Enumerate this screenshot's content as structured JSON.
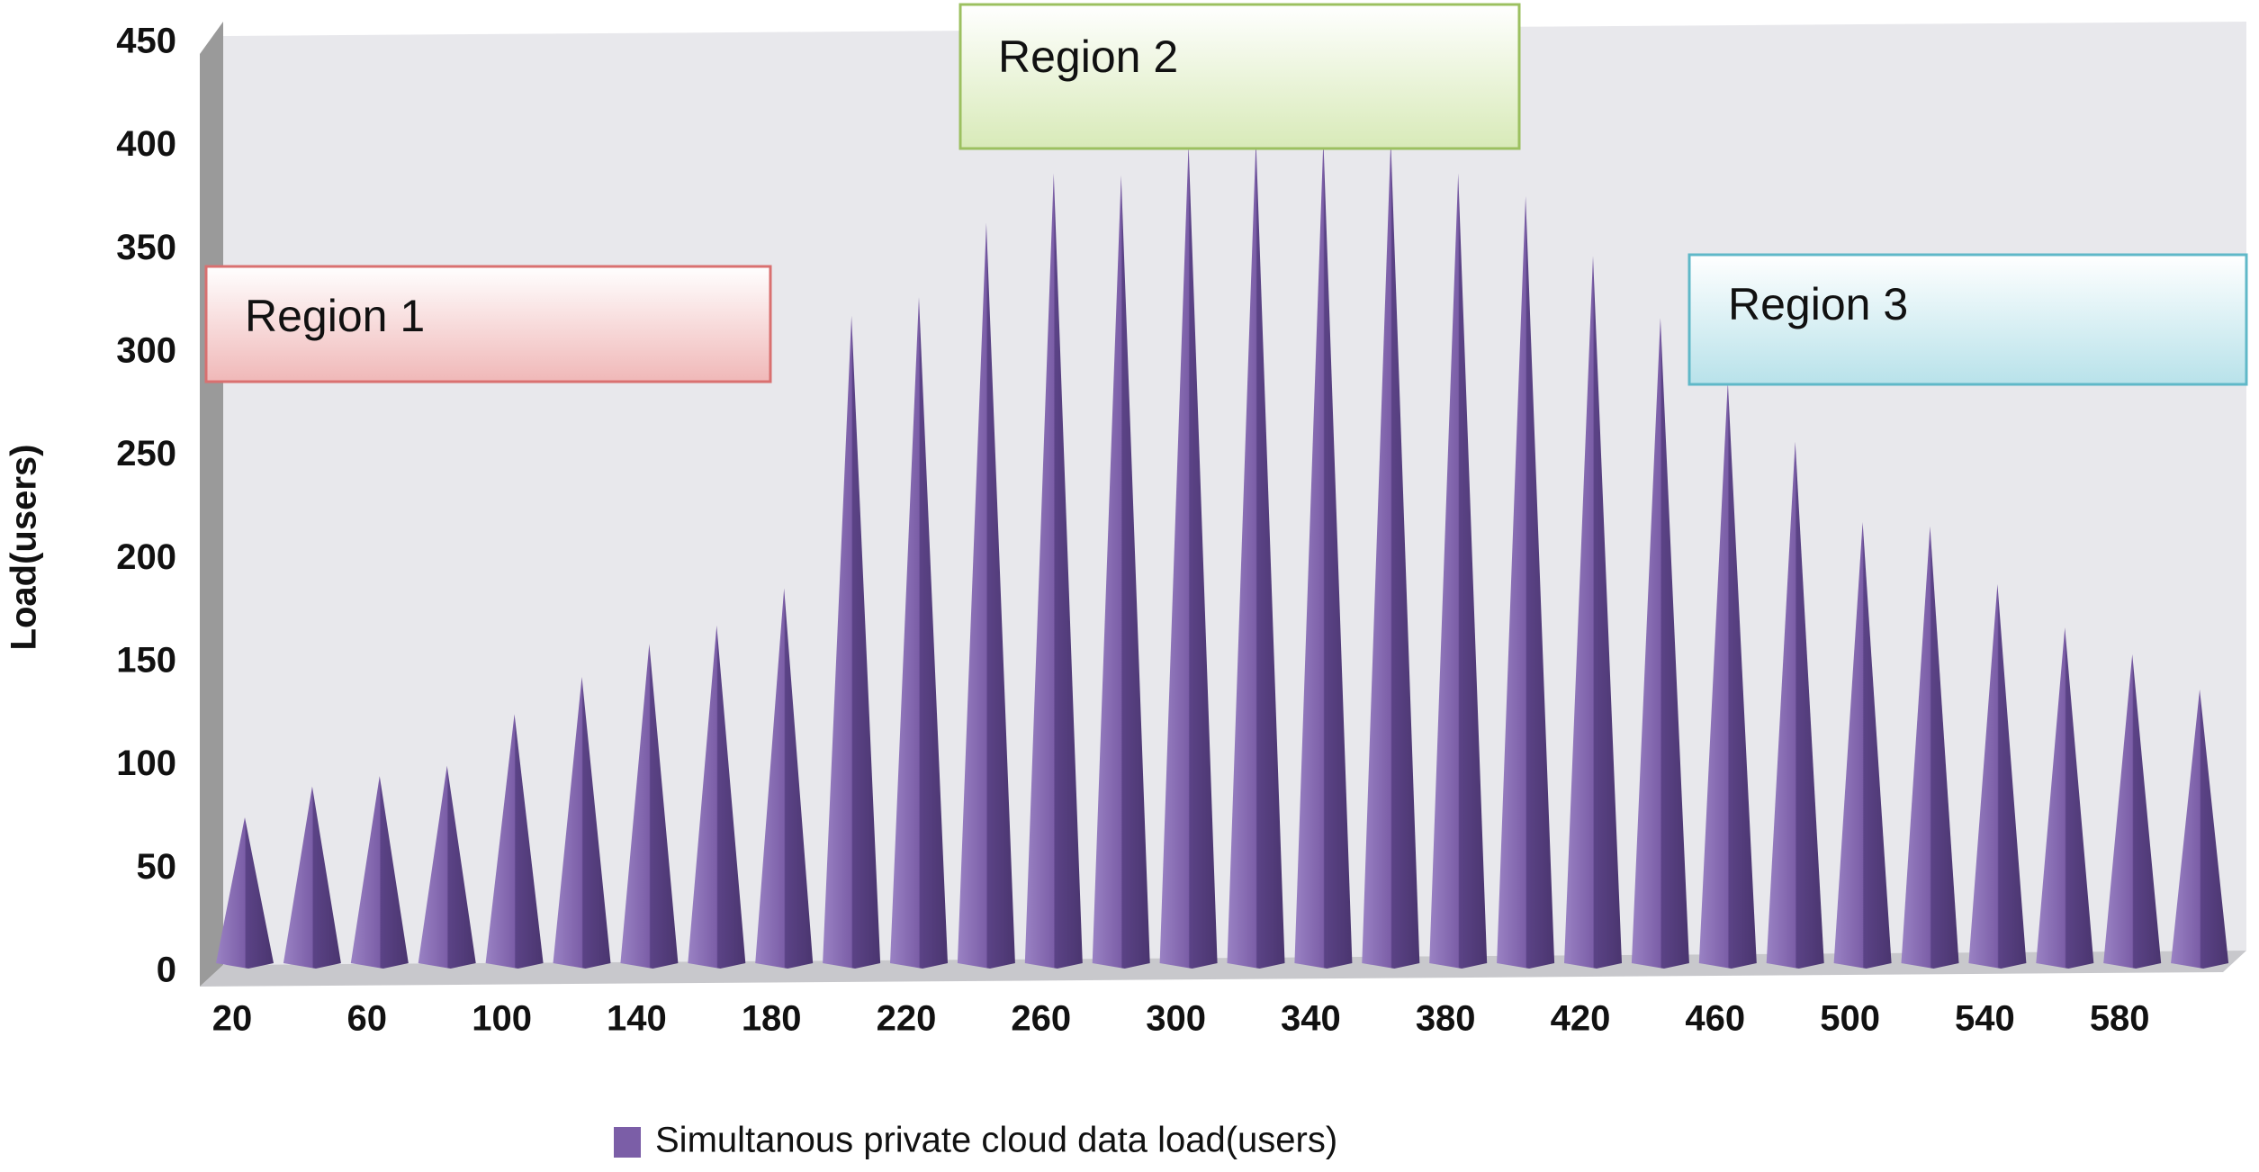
{
  "chart_data": {
    "type": "cone",
    "y_label": "Load(users)",
    "categories": [
      20,
      null,
      60,
      null,
      100,
      null,
      140,
      null,
      180,
      null,
      220,
      null,
      260,
      null,
      300,
      null,
      340,
      null,
      380,
      null,
      420,
      null,
      460,
      null,
      500,
      null,
      540,
      null,
      580,
      null
    ],
    "series": [
      {
        "name": "Simultanous private cloud data  load(users)",
        "color": "#7b5ea7",
        "values": [
          75,
          90,
          95,
          100,
          125,
          143,
          159,
          168,
          186,
          318,
          327,
          363,
          387,
          386,
          401,
          403,
          403,
          403,
          387,
          376,
          347,
          317,
          286,
          257,
          218,
          216,
          188,
          167,
          154,
          137
        ]
      }
    ],
    "ylim": [
      0,
      450
    ],
    "yticks": [
      0,
      50,
      100,
      150,
      200,
      250,
      300,
      350,
      400,
      450
    ],
    "grid": false,
    "annotations": [
      "Region 1",
      "Region 2",
      "Region 3"
    ]
  }
}
